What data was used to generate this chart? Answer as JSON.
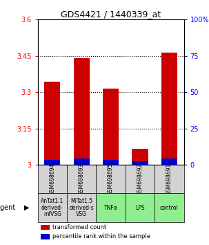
{
  "title": "GDS4421 / 1440339_at",
  "samples": [
    "GSM698694",
    "GSM698693",
    "GSM698695",
    "GSM698692",
    "GSM698691"
  ],
  "agents": [
    "AnTat1.1\nderived-\nmfVSG",
    "MiTat1.5\nderived-s\nVSG",
    "TNFα",
    "LPS",
    "control"
  ],
  "agent_colors": [
    "#d3d3d3",
    "#d3d3d3",
    "#90ee90",
    "#90ee90",
    "#90ee90"
  ],
  "red_values": [
    3.345,
    3.44,
    3.315,
    3.065,
    3.465
  ],
  "blue_values": [
    3.02,
    3.025,
    3.02,
    3.015,
    3.025
  ],
  "ylim_left": [
    3.0,
    3.6
  ],
  "ylim_right": [
    0,
    100
  ],
  "yticks_left": [
    3.0,
    3.15,
    3.3,
    3.45,
    3.6
  ],
  "ytick_labels_left": [
    "3",
    "3.15",
    "3.3",
    "3.45",
    "3.6"
  ],
  "yticks_right": [
    0,
    25,
    50,
    75,
    100
  ],
  "ytick_labels_right": [
    "0",
    "25",
    "50",
    "75",
    "100%"
  ],
  "bar_bottom": 3.0,
  "bar_width": 0.55,
  "red_color": "#cc0000",
  "blue_color": "#0000cc",
  "legend_red": "transformed count",
  "legend_blue": "percentile rank within the sample",
  "agent_label": "agent",
  "grid_yticks": [
    3.15,
    3.3,
    3.45
  ]
}
